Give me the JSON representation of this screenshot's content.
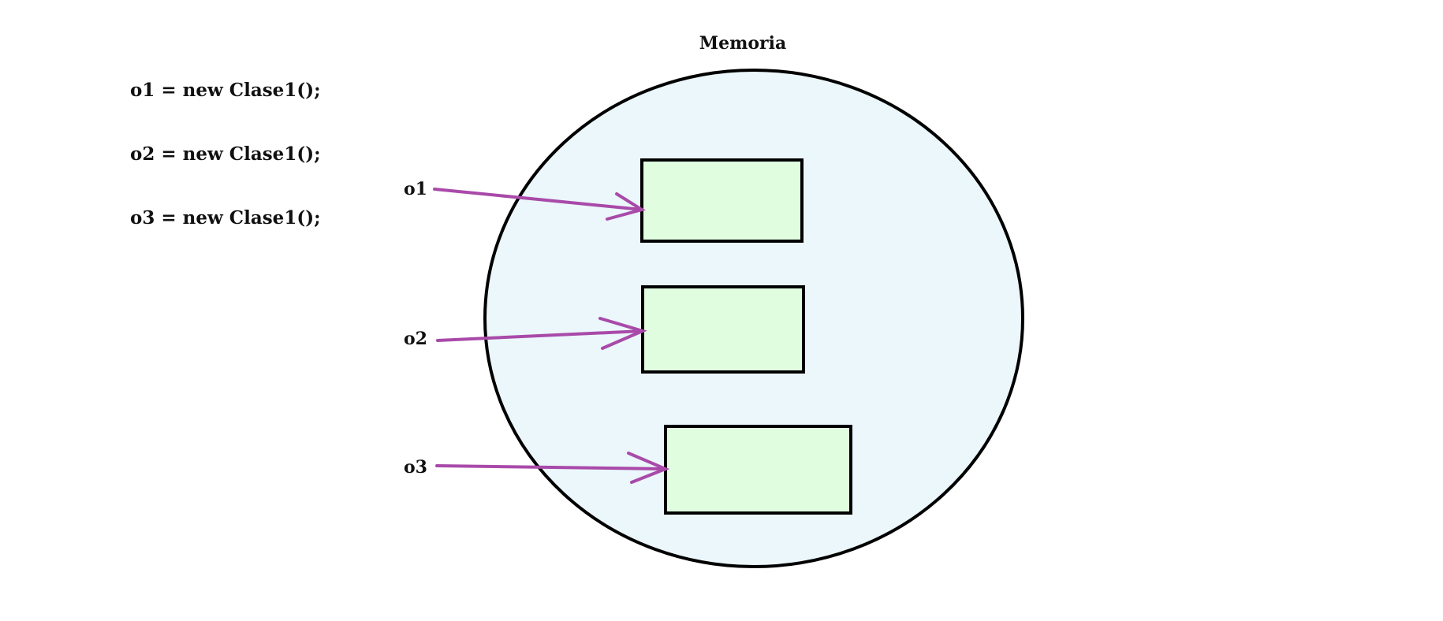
{
  "diagram": {
    "title": "Memoria",
    "code_lines": [
      "o1 = new Clase1();",
      "o2 = new Clase1();",
      "o3 = new Clase1();"
    ],
    "variables": [
      "o1",
      "o2",
      "o3"
    ],
    "colors": {
      "memory_fill": "#ebf7fb",
      "object_fill": "#e1fde0",
      "arrow": "#a94aa9",
      "stroke": "#000000"
    }
  }
}
